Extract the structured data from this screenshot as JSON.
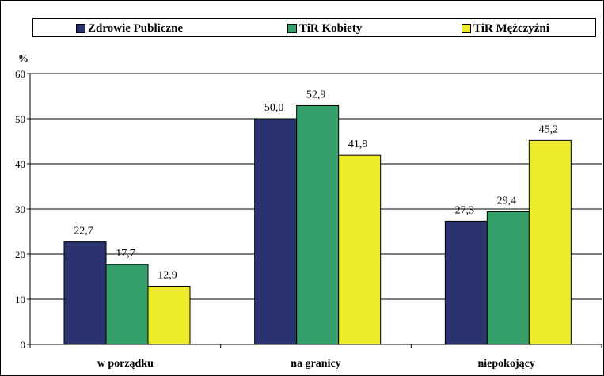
{
  "chart_data": {
    "type": "bar",
    "categories": [
      "w porządku",
      "na granicy",
      "niepokojący"
    ],
    "series": [
      {
        "name": "Zdrowie Publiczne",
        "values": [
          22.7,
          50.0,
          27.3
        ],
        "color": "#2b3270"
      },
      {
        "name": "TiR Kobiety",
        "values": [
          17.7,
          52.9,
          29.4
        ],
        "color": "#36a06b"
      },
      {
        "name": "TiR Mężczyźni",
        "values": [
          12.9,
          41.9,
          45.2
        ],
        "color": "#ecec2a"
      }
    ],
    "value_labels": [
      [
        "22,7",
        "50,0",
        "27,3"
      ],
      [
        "17,7",
        "52,9",
        "29,4"
      ],
      [
        "12,9",
        "41,9",
        "45,2"
      ]
    ],
    "title": "",
    "xlabel": "",
    "ylabel": "%",
    "ylim": [
      0,
      60
    ],
    "yticks": [
      0,
      10,
      20,
      30,
      40,
      50,
      60
    ],
    "grid": true,
    "legend_position": "top"
  }
}
